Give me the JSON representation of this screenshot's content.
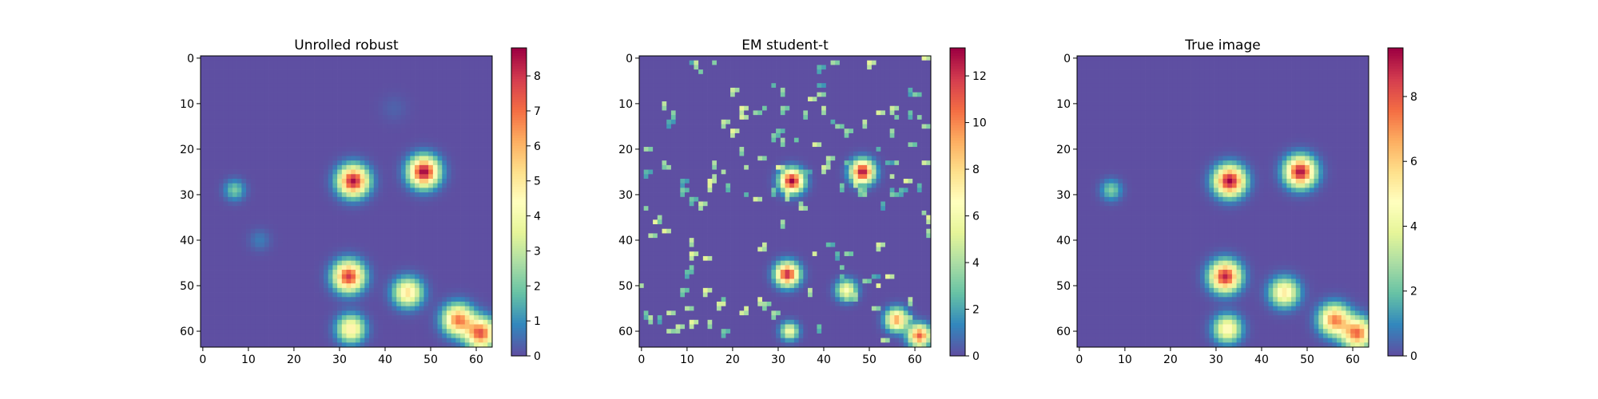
{
  "colormap": {
    "name": "Spectral_r",
    "stops": [
      "#5e4fa2",
      "#3288bd",
      "#66c2a5",
      "#abdda4",
      "#e6f598",
      "#ffffbf",
      "#fee08b",
      "#fdae61",
      "#f46d43",
      "#d53e4f",
      "#9e0142"
    ]
  },
  "chart_data": [
    {
      "type": "heatmap",
      "title": "Unrolled robust",
      "xlim": [
        0,
        63
      ],
      "ylim": [
        0,
        63
      ],
      "xticks": [
        "0",
        "10",
        "20",
        "30",
        "40",
        "50",
        "60"
      ],
      "yticks": [
        "0",
        "10",
        "20",
        "30",
        "40",
        "50",
        "60"
      ],
      "colorbar": {
        "min": 0,
        "max": 8.8,
        "ticks": [
          "0",
          "1",
          "2",
          "3",
          "4",
          "5",
          "6",
          "7",
          "8"
        ]
      },
      "blobs": [
        {
          "x": 33,
          "y": 27,
          "peak": 8.6,
          "sigma": 2.2
        },
        {
          "x": 48.5,
          "y": 25,
          "peak": 8.8,
          "sigma": 2.2
        },
        {
          "x": 32,
          "y": 48,
          "peak": 8.0,
          "sigma": 2.2
        },
        {
          "x": 45,
          "y": 51.5,
          "peak": 5.2,
          "sigma": 2.1
        },
        {
          "x": 32.5,
          "y": 59.5,
          "peak": 5.0,
          "sigma": 2.0
        },
        {
          "x": 56,
          "y": 57.5,
          "peak": 6.8,
          "sigma": 2.2
        },
        {
          "x": 61,
          "y": 60.5,
          "peak": 7.4,
          "sigma": 2.2
        },
        {
          "x": 7,
          "y": 29,
          "peak": 2.0,
          "sigma": 1.5
        },
        {
          "x": 12.5,
          "y": 40,
          "peak": 0.7,
          "sigma": 1.6
        },
        {
          "x": 42,
          "y": 11,
          "peak": 0.3,
          "sigma": 2.0
        }
      ],
      "noise": {
        "seed": 11,
        "count": 0,
        "min": 0,
        "max": 0
      }
    },
    {
      "type": "heatmap",
      "title": "EM student-t",
      "xlim": [
        0,
        63
      ],
      "ylim": [
        0,
        63
      ],
      "xticks": [
        "0",
        "10",
        "20",
        "30",
        "40",
        "50",
        "60"
      ],
      "yticks": [
        "0",
        "10",
        "20",
        "30",
        "40",
        "50",
        "60"
      ],
      "colorbar": {
        "min": 0,
        "max": 13.2,
        "ticks": [
          "0",
          "2",
          "4",
          "6",
          "8",
          "10",
          "12"
        ]
      },
      "blobs": [
        {
          "x": 33,
          "y": 27,
          "peak": 13.2,
          "sigma": 1.7
        },
        {
          "x": 48.5,
          "y": 25,
          "peak": 13.0,
          "sigma": 1.7
        },
        {
          "x": 32,
          "y": 47.5,
          "peak": 12.5,
          "sigma": 1.7
        },
        {
          "x": 45,
          "y": 51,
          "peak": 6.5,
          "sigma": 1.5
        },
        {
          "x": 32.5,
          "y": 60,
          "peak": 6.2,
          "sigma": 1.3
        },
        {
          "x": 56,
          "y": 57.5,
          "peak": 9.5,
          "sigma": 1.6
        },
        {
          "x": 61,
          "y": 61,
          "peak": 11.0,
          "sigma": 1.6
        }
      ],
      "noise": {
        "seed": 7,
        "count": 150,
        "min": 2.0,
        "max": 5.5
      }
    },
    {
      "type": "heatmap",
      "title": "True image",
      "xlim": [
        0,
        63
      ],
      "ylim": [
        0,
        63
      ],
      "xticks": [
        "0",
        "10",
        "20",
        "30",
        "40",
        "50",
        "60"
      ],
      "yticks": [
        "0",
        "10",
        "20",
        "30",
        "40",
        "50",
        "60"
      ],
      "colorbar": {
        "min": 0,
        "max": 9.5,
        "ticks": [
          "0",
          "2",
          "4",
          "6",
          "8"
        ]
      },
      "blobs": [
        {
          "x": 33,
          "y": 27,
          "peak": 9.5,
          "sigma": 2.2
        },
        {
          "x": 48.5,
          "y": 25,
          "peak": 9.3,
          "sigma": 2.2
        },
        {
          "x": 32,
          "y": 48,
          "peak": 9.0,
          "sigma": 2.2
        },
        {
          "x": 45,
          "y": 51.5,
          "peak": 5.4,
          "sigma": 2.1
        },
        {
          "x": 32.5,
          "y": 59.5,
          "peak": 5.2,
          "sigma": 2.0
        },
        {
          "x": 56,
          "y": 57.5,
          "peak": 7.2,
          "sigma": 2.2
        },
        {
          "x": 61,
          "y": 60.5,
          "peak": 7.6,
          "sigma": 2.2
        },
        {
          "x": 7,
          "y": 29,
          "peak": 2.3,
          "sigma": 1.5
        }
      ],
      "noise": {
        "seed": 3,
        "count": 0,
        "min": 0,
        "max": 0
      }
    }
  ]
}
